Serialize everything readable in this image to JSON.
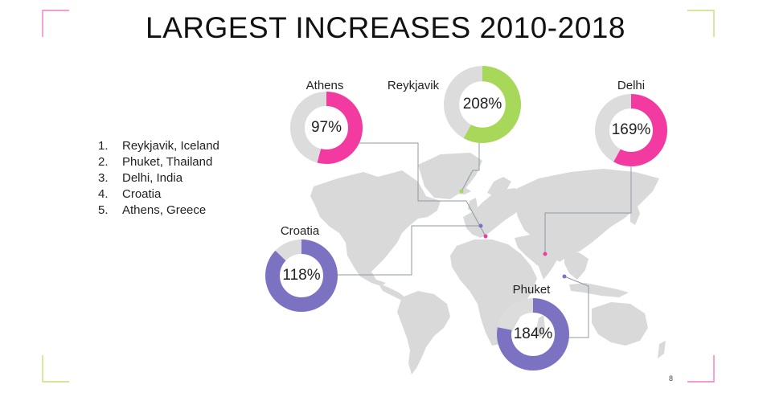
{
  "title": "LARGEST INCREASES 2010-2018",
  "ranking": [
    {
      "num": "1.",
      "label": "Reykjavik, Iceland"
    },
    {
      "num": "2.",
      "label": "Phuket, Thailand"
    },
    {
      "num": "3.",
      "label": "Delhi, India"
    },
    {
      "num": "4.",
      "label": "Croatia"
    },
    {
      "num": "5.",
      "label": "Athens, Greece"
    }
  ],
  "chart_data": {
    "type": "donut",
    "items": [
      {
        "id": "athens",
        "name": "Athens",
        "value_label": "97%",
        "fraction": 0.54,
        "color": "#f23aa0"
      },
      {
        "id": "reykjavik",
        "name": "Reykjavik",
        "value_label": "208%",
        "fraction": 0.58,
        "color": "#a7d85a"
      },
      {
        "id": "delhi",
        "name": "Delhi",
        "value_label": "169%",
        "fraction": 0.58,
        "color": "#f23aa0"
      },
      {
        "id": "croatia",
        "name": "Croatia",
        "value_label": "118%",
        "fraction": 0.87,
        "color": "#7b73c2"
      },
      {
        "id": "phuket",
        "name": "Phuket",
        "value_label": "184%",
        "fraction": 0.78,
        "color": "#7b73c2"
      }
    ],
    "track_color": "#dcdcdc"
  },
  "page_number": "8",
  "colors": {
    "corner_pink": "#f07cc1",
    "corner_green": "#c2e07c",
    "map_land": "#d9d9d9",
    "connector": "#8c9aa6"
  }
}
